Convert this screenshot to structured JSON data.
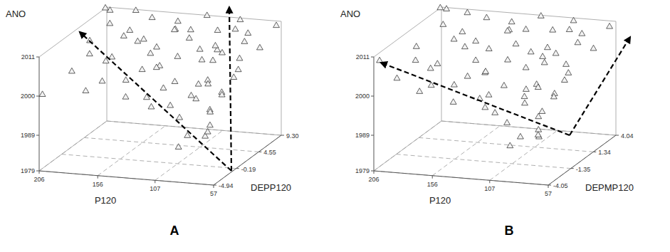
{
  "chart_data": [
    {
      "type": "scatter3d",
      "title": "A",
      "xlabel": "P120",
      "ylabel": "DEPP120",
      "zlabel": "ANO",
      "xlim": [
        206,
        57
      ],
      "ylim": [
        -4.94,
        9.3
      ],
      "zlim": [
        1979,
        2011
      ],
      "xticks": [
        206,
        156,
        107,
        57
      ],
      "yticks": [
        -4.94,
        -0.19,
        4.55,
        {
          "value": 9.3,
          "label": "9.30"
        }
      ],
      "zticks": [
        1979,
        1989,
        2000,
        2011
      ],
      "grid": true,
      "marker": "triangle",
      "color": "#f2f2f2",
      "x": [
        200,
        190,
        180,
        170,
        160,
        150,
        140,
        130,
        120,
        110,
        100,
        90,
        80,
        70,
        60,
        195,
        185,
        175,
        165,
        155,
        145,
        135,
        125,
        115,
        105,
        95,
        85,
        75,
        65,
        188,
        172,
        158,
        148,
        132,
        122,
        108,
        98,
        88,
        78,
        68,
        58,
        168,
        152,
        138,
        118,
        102,
        92,
        82,
        72,
        62,
        142,
        126,
        112,
        96,
        86,
        74,
        64,
        110,
        94,
        80,
        70,
        66,
        84,
        76,
        90,
        206,
        205
      ],
      "y": [
        8.5,
        6.0,
        9.0,
        4.0,
        7.5,
        2.0,
        8.0,
        5.0,
        9.2,
        3.0,
        6.5,
        8.8,
        1.5,
        5.5,
        9.0,
        3.0,
        0.5,
        6.5,
        -1.0,
        4.5,
        8.5,
        1.0,
        7.0,
        -2.0,
        4.0,
        9.0,
        -0.5,
        6.0,
        2.5,
        -2.5,
        2.0,
        -3.5,
        5.5,
        -1.5,
        3.5,
        8.0,
        -3.0,
        4.5,
        -1.0,
        7.5,
        0.5,
        -4.5,
        0.0,
        3.0,
        -4.0,
        6.0,
        0.5,
        -3.5,
        3.0,
        -2.0,
        -2.5,
        1.5,
        -4.5,
        3.5,
        -1.5,
        1.0,
        -4.0,
        -1.0,
        -3.0,
        0.0,
        -2.5,
        -4.5,
        -3.8,
        -1.5,
        -4.2,
        9.0,
        -4.5
      ],
      "z": [
        2011,
        2010,
        2011,
        2009,
        2011,
        2010,
        2010,
        2011,
        2011,
        2011,
        2010,
        2011,
        2010,
        2011,
        2010,
        2008,
        2007,
        2008,
        2007,
        2008,
        2007,
        2008,
        2009,
        2008,
        2007,
        2008,
        2009,
        2008,
        2007,
        2005,
        2005,
        2004,
        2005,
        2006,
        2005,
        2004,
        2005,
        2006,
        2004,
        2005,
        2006,
        2002,
        2001,
        2002,
        2001,
        2002,
        2001,
        2002,
        2001,
        2002,
        1999,
        1998,
        1999,
        1998,
        1999,
        1998,
        1999,
        1996,
        1995,
        1994,
        1993,
        1992,
        1991,
        1990,
        1988,
        2011,
        2000
      ]
    },
    {
      "type": "scatter3d",
      "title": "B",
      "xlabel": "P120",
      "ylabel": "DEPMP120",
      "zlabel": "ANO",
      "xlim": [
        206,
        57
      ],
      "ylim": [
        -4.05,
        4.04
      ],
      "zlim": [
        1979,
        2011
      ],
      "xticks": [
        206,
        156,
        107,
        57
      ],
      "yticks": [
        -4.05,
        -1.35,
        1.34,
        4.04
      ],
      "zticks": [
        1979,
        1989,
        2000,
        2011
      ],
      "grid": true,
      "marker": "triangle",
      "color": "#f2f2f2",
      "x": [
        200,
        190,
        180,
        170,
        160,
        150,
        140,
        130,
        120,
        110,
        100,
        90,
        80,
        70,
        60,
        195,
        185,
        175,
        165,
        155,
        145,
        135,
        125,
        115,
        105,
        95,
        85,
        75,
        65,
        188,
        172,
        158,
        148,
        132,
        122,
        108,
        98,
        88,
        78,
        68,
        58,
        168,
        152,
        138,
        118,
        102,
        92,
        82,
        72,
        62,
        142,
        126,
        112,
        96,
        86,
        74,
        64,
        110,
        94,
        80,
        70,
        66,
        84,
        76,
        90,
        206,
        205
      ],
      "y": [
        3.8,
        2.0,
        3.5,
        0.5,
        3.0,
        -1.0,
        3.2,
        1.5,
        3.9,
        -0.5,
        2.5,
        3.6,
        -1.5,
        1.8,
        3.7,
        -0.5,
        -2.0,
        2.2,
        -3.0,
        1.0,
        3.4,
        -1.8,
        2.8,
        -3.5,
        0.6,
        3.8,
        -2.8,
        2.0,
        -0.8,
        -3.8,
        -1.2,
        -3.9,
        1.6,
        -3.2,
        0.2,
        3.0,
        -3.6,
        1.2,
        -2.5,
        2.9,
        -1.5,
        -3.9,
        -2.0,
        -0.2,
        -3.7,
        1.8,
        -1.8,
        -3.4,
        0.0,
        -2.6,
        -3.5,
        -1.5,
        -3.9,
        0.2,
        -2.8,
        -1.0,
        -3.8,
        -3.0,
        -3.8,
        -2.0,
        -3.4,
        -3.9,
        -3.6,
        -2.6,
        -4.0,
        3.9,
        -3.5
      ],
      "z": [
        2011,
        2010,
        2011,
        2009,
        2011,
        2010,
        2010,
        2011,
        2011,
        2011,
        2010,
        2011,
        2010,
        2011,
        2010,
        2008,
        2007,
        2008,
        2007,
        2008,
        2007,
        2008,
        2009,
        2008,
        2007,
        2008,
        2009,
        2008,
        2007,
        2005,
        2005,
        2004,
        2005,
        2006,
        2005,
        2004,
        2005,
        2006,
        2004,
        2005,
        2006,
        2002,
        2001,
        2002,
        2001,
        2002,
        2001,
        2002,
        2001,
        2002,
        1999,
        1998,
        1999,
        1998,
        1999,
        1998,
        1999,
        1996,
        1995,
        1994,
        1993,
        1992,
        1991,
        1990,
        1989,
        2011,
        2009
      ]
    }
  ]
}
